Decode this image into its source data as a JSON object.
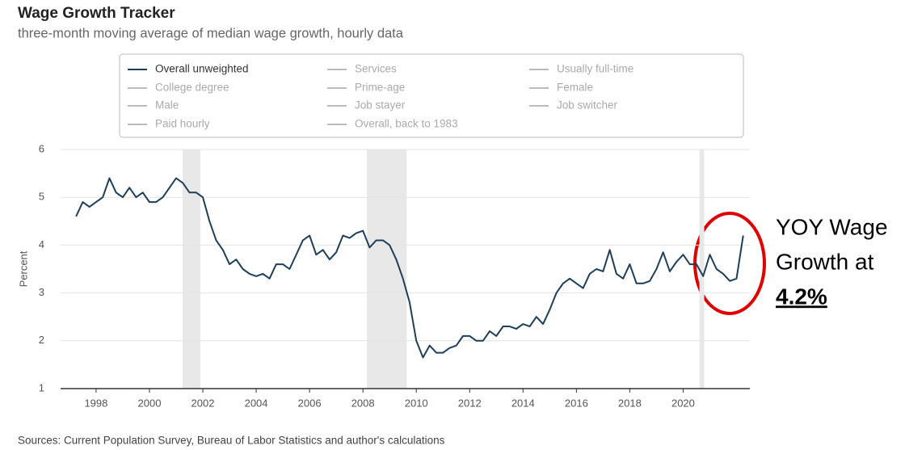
{
  "chart_data": {
    "type": "line",
    "title": "Wage Growth Tracker",
    "subtitle": "three-month moving average of median wage growth, hourly data",
    "y_label": "Percent",
    "source": "Sources: Current Population Survey, Bureau of Labor Statistics and author's calculations",
    "xlim": [
      1996.67,
      2022.5
    ],
    "ylim": [
      1,
      6
    ],
    "xticks": [
      1998,
      2000,
      2002,
      2004,
      2006,
      2008,
      2010,
      2012,
      2014,
      2016,
      2018,
      2020
    ],
    "yticks": [
      1,
      2,
      3,
      4,
      5,
      6
    ],
    "grid": true,
    "shaded_periods": [
      [
        2001.24,
        2001.91
      ],
      [
        2008.15,
        2009.64
      ],
      [
        2020.61,
        2020.79
      ]
    ],
    "legend_inactive": [
      "Services",
      "Usually full-time",
      "College degree",
      "Prime-age",
      "Female",
      "Male",
      "Job stayer",
      "Job switcher",
      "Paid hourly",
      "Overall, back to 1983"
    ],
    "legend_inactive_color": "#bbbbbb",
    "x": [
      1997.25,
      1997.5,
      1997.75,
      1998,
      1998.25,
      1998.5,
      1998.75,
      1999,
      1999.25,
      1999.5,
      1999.75,
      2000,
      2000.25,
      2000.5,
      2000.75,
      2001,
      2001.25,
      2001.5,
      2001.75,
      2002,
      2002.25,
      2002.5,
      2002.75,
      2003,
      2003.25,
      2003.5,
      2003.75,
      2004,
      2004.25,
      2004.5,
      2004.75,
      2005,
      2005.25,
      2005.5,
      2005.75,
      2006,
      2006.25,
      2006.5,
      2006.75,
      2007,
      2007.25,
      2007.5,
      2007.75,
      2008,
      2008.25,
      2008.5,
      2008.75,
      2009,
      2009.25,
      2009.5,
      2009.75,
      2010,
      2010.25,
      2010.5,
      2010.75,
      2011,
      2011.25,
      2011.5,
      2011.75,
      2012,
      2012.25,
      2012.5,
      2012.75,
      2013,
      2013.25,
      2013.5,
      2013.75,
      2014,
      2014.25,
      2014.5,
      2014.75,
      2015,
      2015.25,
      2015.5,
      2015.75,
      2016,
      2016.25,
      2016.5,
      2016.75,
      2017,
      2017.25,
      2017.5,
      2017.75,
      2018,
      2018.25,
      2018.5,
      2018.75,
      2019,
      2019.25,
      2019.5,
      2019.75,
      2020,
      2020.25,
      2020.5,
      2020.75,
      2021,
      2021.25,
      2021.5,
      2021.75,
      2022,
      2022.25
    ],
    "series": [
      {
        "name": "Overall unweighted",
        "color": "#1d3f5c",
        "values": [
          4.6,
          4.9,
          4.8,
          4.9,
          5.0,
          5.4,
          5.1,
          5.0,
          5.2,
          5.0,
          5.1,
          4.9,
          4.9,
          5.0,
          5.2,
          5.4,
          5.3,
          5.1,
          5.1,
          5.0,
          4.5,
          4.1,
          3.9,
          3.6,
          3.7,
          3.5,
          3.4,
          3.35,
          3.4,
          3.3,
          3.6,
          3.6,
          3.5,
          3.8,
          4.1,
          4.2,
          3.8,
          3.9,
          3.7,
          3.85,
          4.2,
          4.15,
          4.25,
          4.3,
          3.95,
          4.1,
          4.1,
          4.0,
          3.7,
          3.3,
          2.8,
          2.0,
          1.65,
          1.9,
          1.75,
          1.75,
          1.85,
          1.9,
          2.1,
          2.1,
          2.0,
          2.0,
          2.2,
          2.1,
          2.3,
          2.3,
          2.25,
          2.35,
          2.3,
          2.5,
          2.35,
          2.65,
          3.0,
          3.2,
          3.3,
          3.2,
          3.1,
          3.4,
          3.5,
          3.45,
          3.9,
          3.4,
          3.3,
          3.6,
          3.2,
          3.2,
          3.25,
          3.5,
          3.85,
          3.45,
          3.65,
          3.8,
          3.6,
          3.6,
          3.35,
          3.8,
          3.5,
          3.4,
          3.25,
          3.3,
          4.2
        ]
      }
    ],
    "annotation": {
      "lines": [
        "YOY Wage",
        "Growth at",
        "4.2%"
      ],
      "color": "#e00000"
    }
  }
}
